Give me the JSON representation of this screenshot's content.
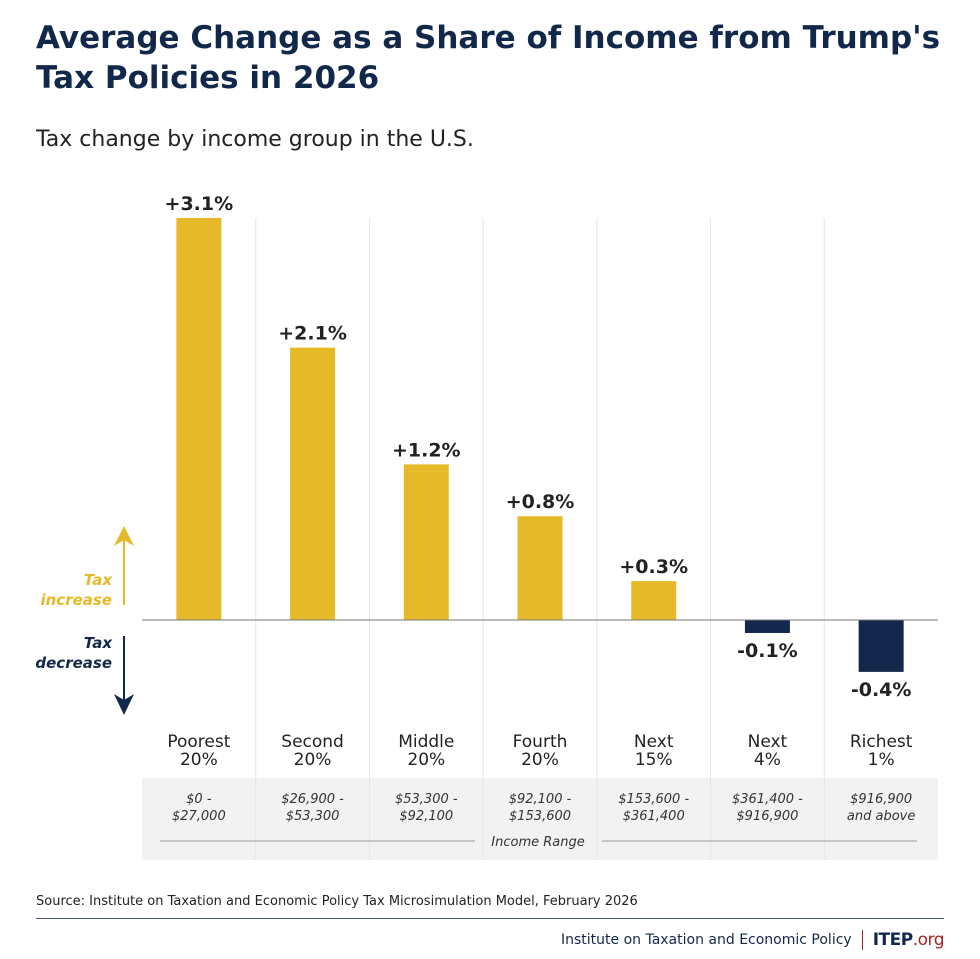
{
  "title": "Average Change as a Share of Income from Trump's Tax Policies in 2026",
  "subtitle": "Tax change by income group in the U.S.",
  "source": "Source: Institute on Taxation and Economic Policy Tax Microsimulation Model, February 2026",
  "footer": {
    "org": "Institute on Taxation and Economic Policy",
    "logo_main": "ITEP",
    "logo_suffix": ".org"
  },
  "colors": {
    "increase": "#e6b929",
    "decrease": "#13294b",
    "band": "#f2f2f2"
  },
  "chart_data": {
    "type": "bar",
    "categories": [
      "Poorest 20%",
      "Second 20%",
      "Middle 20%",
      "Fourth 20%",
      "Next 15%",
      "Next 4%",
      "Richest 1%"
    ],
    "category_lines": [
      [
        "Poorest",
        "20%"
      ],
      [
        "Second",
        "20%"
      ],
      [
        "Middle",
        "20%"
      ],
      [
        "Fourth",
        "20%"
      ],
      [
        "Next",
        "15%"
      ],
      [
        "Next",
        "4%"
      ],
      [
        "Richest",
        "1%"
      ]
    ],
    "income_ranges": [
      [
        "$0 -",
        "$27,000"
      ],
      [
        "$26,900 -",
        "$53,300"
      ],
      [
        "$53,300 -",
        "$92,100"
      ],
      [
        "$92,100 -",
        "$153,600"
      ],
      [
        "$153,600 -",
        "$361,400"
      ],
      [
        "$361,400 -",
        "$916,900"
      ],
      [
        "$916,900",
        "and above"
      ]
    ],
    "income_range_label": "Income Range",
    "values": [
      3.1,
      2.1,
      1.2,
      0.8,
      0.3,
      -0.1,
      -0.4
    ],
    "data_labels": [
      "+3.1%",
      "+2.1%",
      "+1.2%",
      "+0.8%",
      "+0.3%",
      "-0.1%",
      "-0.4%"
    ],
    "unit": "%",
    "direction_labels": {
      "increase": [
        "Tax",
        "increase"
      ],
      "decrease": [
        "Tax",
        "decrease"
      ]
    },
    "grid": false
  }
}
